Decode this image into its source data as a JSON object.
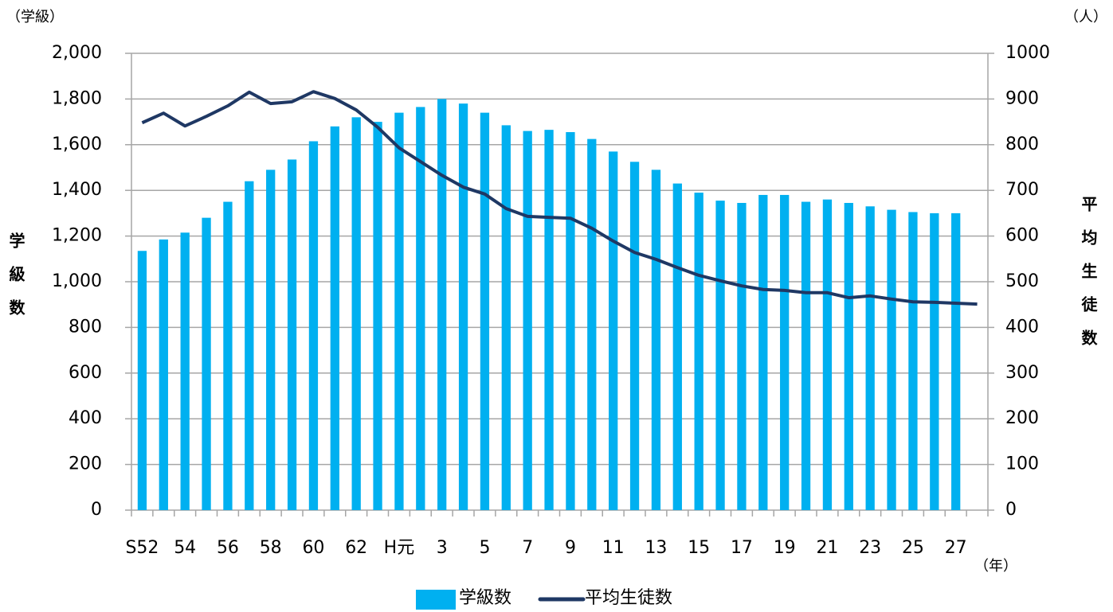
{
  "chart_data": {
    "type": "bar",
    "categories": [
      "S52",
      null,
      "54",
      null,
      "56",
      null,
      "58",
      null,
      "60",
      null,
      "62",
      null,
      "H元",
      null,
      "3",
      null,
      "5",
      null,
      "7",
      null,
      "9",
      null,
      "11",
      null,
      "13",
      null,
      "15",
      null,
      "17",
      null,
      "19",
      null,
      "21",
      null,
      "23",
      null,
      "25",
      null,
      "27",
      null
    ],
    "series": [
      {
        "name": "学級数",
        "type": "bar",
        "axis": "y",
        "color": "#00b0f0",
        "values": [
          1135,
          1185,
          1215,
          1280,
          1350,
          1440,
          1490,
          1535,
          1615,
          1680,
          1720,
          1700,
          1740,
          1765,
          1800,
          1780,
          1740,
          1685,
          1660,
          1665,
          1655,
          1625,
          1570,
          1525,
          1490,
          1430,
          1390,
          1355,
          1345,
          1380,
          1380,
          1350,
          1360,
          1345,
          1330,
          1315,
          1305,
          1300,
          1300,
          null
        ]
      },
      {
        "name": "平均生徒数",
        "type": "line",
        "axis": "y2",
        "color": "#1f3864",
        "values": [
          848,
          869,
          841,
          862,
          885,
          915,
          890,
          894,
          916,
          901,
          876,
          838,
          793,
          763,
          733,
          707,
          692,
          660,
          643,
          641,
          639,
          617,
          589,
          564,
          549,
          531,
          514,
          502,
          491,
          483,
          481,
          476,
          476,
          465,
          469,
          462,
          456,
          455,
          453,
          451
        ]
      }
    ],
    "ylim": [
      0,
      2000
    ],
    "yticks": [
      0,
      200,
      400,
      600,
      800,
      {
        "value": 1000,
        "label": "1,000"
      },
      {
        "value": 1200,
        "label": "1,200"
      },
      {
        "value": 1400,
        "label": "1,400"
      },
      {
        "value": 1600,
        "label": "1,600"
      },
      {
        "value": 1800,
        "label": "1,800"
      },
      {
        "value": 2000,
        "label": "2,000"
      }
    ],
    "y2lim": [
      0,
      1000
    ],
    "y2ticks": [
      0,
      100,
      200,
      300,
      400,
      500,
      600,
      700,
      800,
      900,
      1000
    ],
    "y_unit": "（学級）",
    "y2_unit": "（人）",
    "x_unit": "（年）",
    "y_label": "学級数",
    "y2_label": "平均生徒数",
    "grid": true,
    "legend": "bottom"
  }
}
